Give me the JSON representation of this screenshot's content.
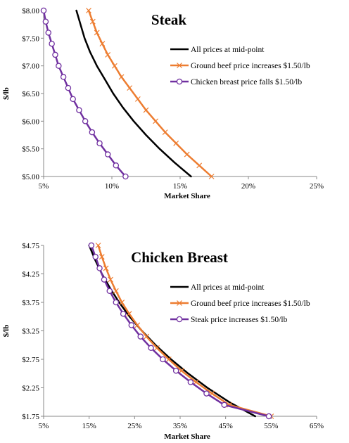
{
  "chart_data": [
    {
      "type": "line",
      "title": "Steak",
      "xlabel": "Market Share",
      "ylabel": "$/lb",
      "xlim": [
        5,
        25
      ],
      "ylim": [
        5.0,
        8.0
      ],
      "x_tick_labels": [
        "5%",
        "10%",
        "15%",
        "20%",
        "25%"
      ],
      "x_tick_values": [
        5,
        10,
        15,
        20,
        25
      ],
      "y_tick_labels": [
        "$5.00",
        "$5.50",
        "$6.00",
        "$6.50",
        "$7.00",
        "$7.50",
        "$8.00"
      ],
      "y_tick_values": [
        5.0,
        5.5,
        6.0,
        6.5,
        7.0,
        7.5,
        8.0
      ],
      "grid": false,
      "legend_position": "upper-right",
      "series": [
        {
          "name": "All prices at mid-point",
          "color": "#000000",
          "marker": "none",
          "points": [
            [
              7.4,
              8.0
            ],
            [
              7.7,
              7.75
            ],
            [
              8.0,
              7.5
            ],
            [
              8.4,
              7.25
            ],
            [
              8.9,
              7.0
            ],
            [
              9.5,
              6.75
            ],
            [
              10.1,
              6.5
            ],
            [
              10.8,
              6.25
            ],
            [
              11.6,
              6.0
            ],
            [
              12.5,
              5.75
            ],
            [
              13.5,
              5.5
            ],
            [
              14.6,
              5.25
            ],
            [
              15.8,
              5.0
            ]
          ]
        },
        {
          "name": "Ground beef price increases $1.50/lb",
          "color": "#ED7D31",
          "marker": "x",
          "points": [
            [
              8.3,
              8.0
            ],
            [
              8.6,
              7.8
            ],
            [
              8.9,
              7.6
            ],
            [
              9.3,
              7.4
            ],
            [
              9.7,
              7.2
            ],
            [
              10.2,
              7.0
            ],
            [
              10.7,
              6.8
            ],
            [
              11.3,
              6.6
            ],
            [
              11.9,
              6.4
            ],
            [
              12.5,
              6.2
            ],
            [
              13.2,
              6.0
            ],
            [
              13.9,
              5.8
            ],
            [
              14.7,
              5.6
            ],
            [
              15.5,
              5.4
            ],
            [
              16.4,
              5.2
            ],
            [
              17.3,
              5.0
            ]
          ]
        },
        {
          "name": "Chicken breast price falls $1.50/lb",
          "color": "#7030A0",
          "marker": "o",
          "points": [
            [
              5.0,
              8.0
            ],
            [
              5.15,
              7.8
            ],
            [
              5.35,
              7.6
            ],
            [
              5.6,
              7.4
            ],
            [
              5.85,
              7.2
            ],
            [
              6.1,
              7.0
            ],
            [
              6.45,
              6.8
            ],
            [
              6.8,
              6.6
            ],
            [
              7.15,
              6.4
            ],
            [
              7.6,
              6.2
            ],
            [
              8.05,
              6.0
            ],
            [
              8.55,
              5.8
            ],
            [
              9.1,
              5.6
            ],
            [
              9.7,
              5.4
            ],
            [
              10.3,
              5.2
            ],
            [
              11.0,
              5.0
            ]
          ]
        }
      ]
    },
    {
      "type": "line",
      "title": "Chicken Breast",
      "xlabel": "Market Share",
      "ylabel": "$/lb",
      "xlim": [
        5,
        65
      ],
      "ylim": [
        1.75,
        4.75
      ],
      "x_tick_labels": [
        "5%",
        "15%",
        "25%",
        "35%",
        "45%",
        "55%",
        "65%"
      ],
      "x_tick_values": [
        5,
        15,
        25,
        35,
        45,
        55,
        65
      ],
      "y_tick_labels": [
        "$1.75",
        "$2.25",
        "$2.75",
        "$3.25",
        "$3.75",
        "$4.25",
        "$4.75"
      ],
      "y_tick_values": [
        1.75,
        2.25,
        2.75,
        3.25,
        3.75,
        4.25,
        4.75
      ],
      "grid": false,
      "legend_position": "right",
      "series": [
        {
          "name": "All prices at mid-point",
          "color": "#000000",
          "marker": "none",
          "points": [
            [
              15.0,
              4.75
            ],
            [
              16.3,
              4.5
            ],
            [
              17.8,
              4.25
            ],
            [
              19.6,
              4.0
            ],
            [
              21.6,
              3.75
            ],
            [
              23.9,
              3.5
            ],
            [
              26.6,
              3.25
            ],
            [
              29.6,
              3.0
            ],
            [
              33.0,
              2.75
            ],
            [
              36.8,
              2.5
            ],
            [
              41.0,
              2.25
            ],
            [
              45.8,
              2.0
            ],
            [
              51.5,
              1.75
            ]
          ]
        },
        {
          "name": "Ground beef price increases $1.50/lb",
          "color": "#ED7D31",
          "marker": "x",
          "points": [
            [
              17.0,
              4.75
            ],
            [
              17.8,
              4.55
            ],
            [
              18.7,
              4.35
            ],
            [
              19.7,
              4.15
            ],
            [
              20.9,
              3.95
            ],
            [
              22.2,
              3.75
            ],
            [
              23.8,
              3.55
            ],
            [
              25.6,
              3.35
            ],
            [
              27.6,
              3.15
            ],
            [
              29.9,
              2.95
            ],
            [
              32.5,
              2.75
            ],
            [
              35.3,
              2.55
            ],
            [
              38.5,
              2.35
            ],
            [
              42.0,
              2.15
            ],
            [
              45.8,
              1.95
            ],
            [
              55.0,
              1.75
            ]
          ]
        },
        {
          "name": "Steak price increases $1.50/lb",
          "color": "#7030A0",
          "marker": "o",
          "points": [
            [
              15.5,
              4.75
            ],
            [
              16.4,
              4.55
            ],
            [
              17.3,
              4.35
            ],
            [
              18.3,
              4.15
            ],
            [
              19.5,
              3.95
            ],
            [
              20.9,
              3.75
            ],
            [
              22.5,
              3.55
            ],
            [
              24.3,
              3.35
            ],
            [
              26.3,
              3.15
            ],
            [
              28.6,
              2.95
            ],
            [
              31.2,
              2.75
            ],
            [
              34.1,
              2.55
            ],
            [
              37.3,
              2.35
            ],
            [
              40.8,
              2.15
            ],
            [
              44.7,
              1.95
            ],
            [
              54.5,
              1.75
            ]
          ]
        }
      ]
    }
  ]
}
